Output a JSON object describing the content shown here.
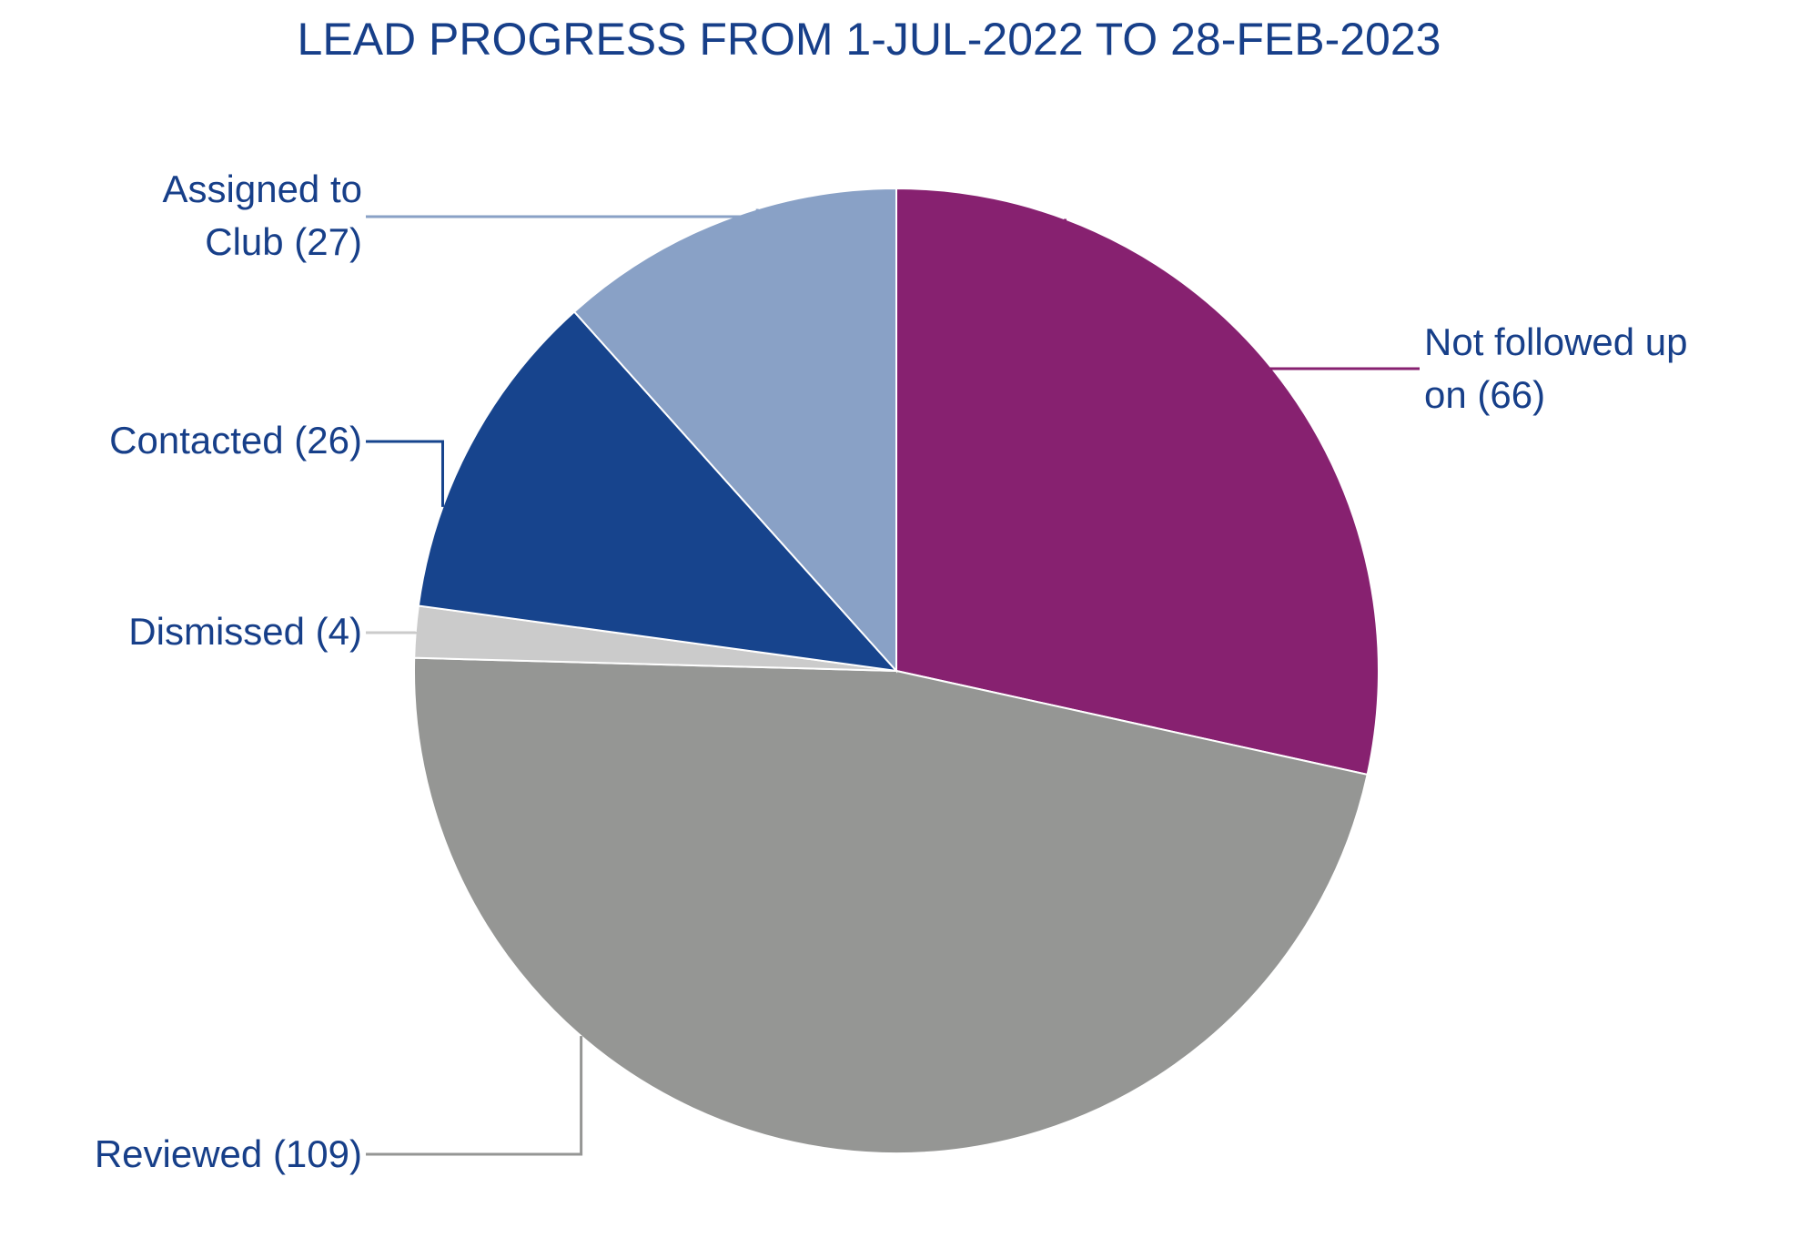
{
  "chart_data": {
    "type": "pie",
    "title": "LEAD PROGRESS FROM 1-JUL-2022 TO 28-FEB-2023",
    "slices": [
      {
        "label": "Not followed up on",
        "value": 66,
        "color": "#872170",
        "lines": [
          "Not followed up",
          "on (66)"
        ]
      },
      {
        "label": "Reviewed",
        "value": 109,
        "color": "#959694",
        "lines": [
          "Reviewed (109)"
        ]
      },
      {
        "label": "Dismissed",
        "value": 4,
        "color": "#cbcbcb",
        "lines": [
          "Dismissed (4)"
        ]
      },
      {
        "label": "Contacted",
        "value": 26,
        "color": "#17448d",
        "lines": [
          "Contacted (26)"
        ]
      },
      {
        "label": "Assigned to Club",
        "value": 27,
        "color": "#89a1c6",
        "lines": [
          "Assigned to",
          "Club (27)"
        ]
      }
    ],
    "label_color": "#173f89",
    "title_color": "#173f89"
  }
}
